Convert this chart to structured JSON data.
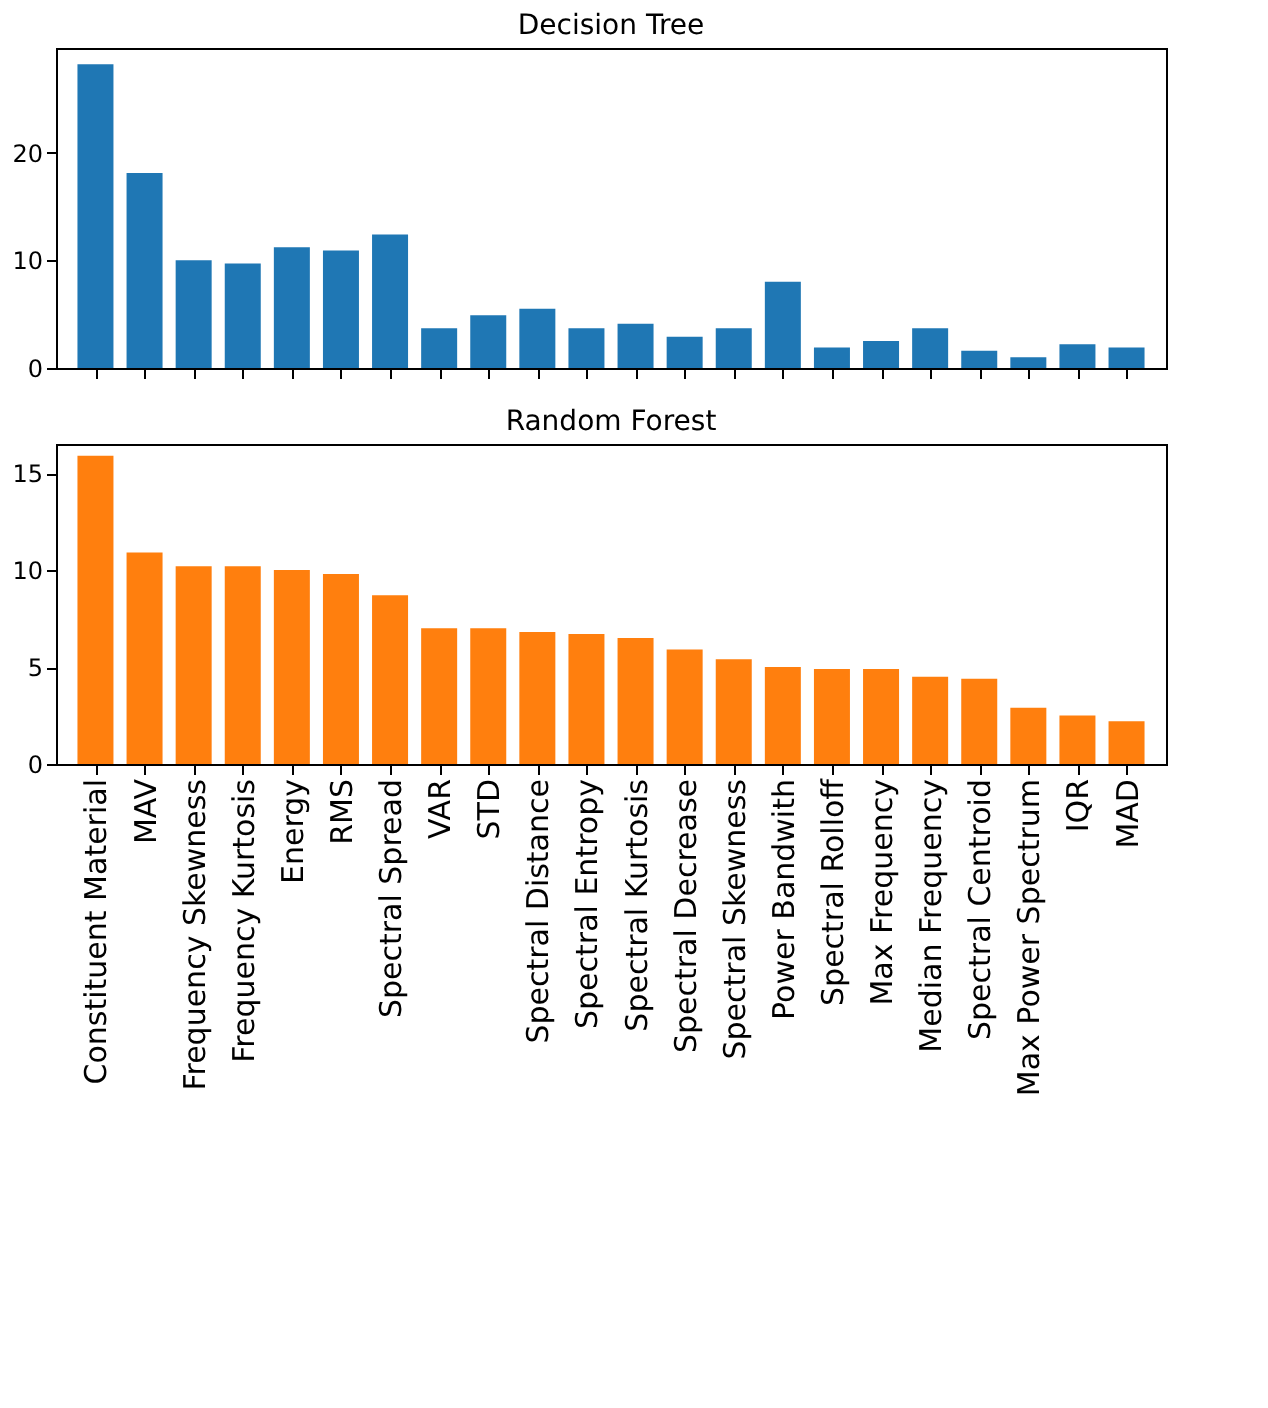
{
  "chart_data": [
    {
      "type": "bar",
      "title": "Decision Tree",
      "categories": [
        null,
        null,
        null,
        null,
        null,
        null,
        null,
        null,
        null,
        null,
        null,
        null,
        null,
        null,
        null,
        null,
        null,
        null,
        null,
        null,
        null,
        null
      ],
      "series": [
        {
          "color": "#1f77b4",
          "values": [
            28.2,
            18.1,
            10.0,
            9.7,
            11.2,
            10.9,
            12.4,
            3.7,
            4.9,
            5.5,
            3.7,
            4.1,
            2.9,
            3.7,
            8.0,
            1.9,
            2.5,
            3.7,
            1.6,
            1.0,
            2.2,
            1.9
          ]
        }
      ],
      "ylim": [
        0,
        29.7
      ],
      "yticks": [
        0,
        10,
        20
      ],
      "tick_labels": "y",
      "grid": false,
      "legend": false
    },
    {
      "type": "bar",
      "title": "Random Forest",
      "categories": [
        "Constituent Material",
        "MAV",
        "Frequency Skewness",
        "Frequency Kurtosis",
        "Energy",
        "RMS",
        "Spectral Spread",
        "VAR",
        "STD",
        "Spectral Distance",
        "Spectral Entropy",
        "Spectral Kurtosis",
        "Spectral Decrease",
        "Spectral Skewness",
        "Power Bandwith",
        "Spectral Rolloff",
        "Max Frequency",
        "Median Frequency",
        "Spectral Centroid",
        "Max Power Spectrum",
        "IQR",
        "MAD"
      ],
      "series": [
        {
          "color": "#ff7f0e",
          "values": [
            15.9,
            10.9,
            10.2,
            10.2,
            10.0,
            9.8,
            8.7,
            7.0,
            7.0,
            6.8,
            6.7,
            6.5,
            5.9,
            5.4,
            5.0,
            4.9,
            4.9,
            4.5,
            4.4,
            2.9,
            2.5,
            2.2
          ]
        }
      ],
      "ylim": [
        0,
        16.5
      ],
      "yticks": [
        0,
        5,
        10,
        15
      ],
      "grid": false,
      "legend": false
    }
  ]
}
